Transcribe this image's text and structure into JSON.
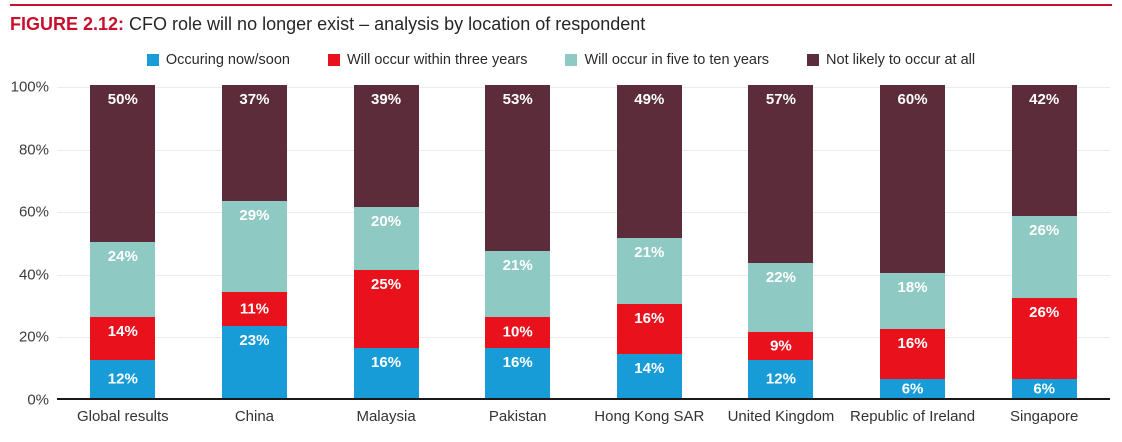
{
  "figure": {
    "label": "FIGURE 2.12:",
    "title": "CFO role will no longer exist – analysis by location of respondent"
  },
  "colors": {
    "accent_rule": "#c8102e",
    "figure_label": "#c8102e",
    "title_text": "#262626",
    "now_soon": "#189cd8",
    "three_years": "#e8111c",
    "five_ten_years": "#8fc9c3",
    "not_likely": "#5d2c3a",
    "gridline": "#ebebeb",
    "baseline": "#191919"
  },
  "legend": [
    {
      "label": "Occuring now/soon",
      "color": "#189cd8"
    },
    {
      "label": "Will occur within three years",
      "color": "#e8111c"
    },
    {
      "label": "Will occur in five to ten years",
      "color": "#8fc9c3"
    },
    {
      "label": "Not likely to occur at all",
      "color": "#5d2c3a"
    }
  ],
  "chart_data": {
    "type": "bar",
    "stacked": true,
    "title": "CFO role will no longer exist – analysis by location of respondent",
    "categories": [
      "Global results",
      "China",
      "Malaysia",
      "Pakistan",
      "Hong Kong SAR",
      "United Kingdom",
      "Republic of Ireland",
      "Singapore"
    ],
    "series": [
      {
        "name": "Occuring now/soon",
        "color": "#189cd8",
        "values": [
          12,
          23,
          16,
          16,
          14,
          12,
          6,
          6
        ]
      },
      {
        "name": "Will occur within three years",
        "color": "#e8111c",
        "values": [
          14,
          11,
          25,
          10,
          16,
          9,
          16,
          26
        ]
      },
      {
        "name": "Will occur in five to ten years",
        "color": "#8fc9c3",
        "values": [
          24,
          29,
          20,
          21,
          21,
          22,
          18,
          26
        ]
      },
      {
        "name": "Not likely to occur at all",
        "color": "#5d2c3a",
        "values": [
          50,
          37,
          39,
          53,
          49,
          57,
          60,
          42
        ]
      }
    ],
    "value_suffix": "%",
    "xlabel": "",
    "ylabel": "",
    "ylim": [
      0,
      100
    ],
    "y_ticks": [
      "0%",
      "20%",
      "40%",
      "60%",
      "80%",
      "100%"
    ],
    "grid": true,
    "legend_position": "top"
  }
}
